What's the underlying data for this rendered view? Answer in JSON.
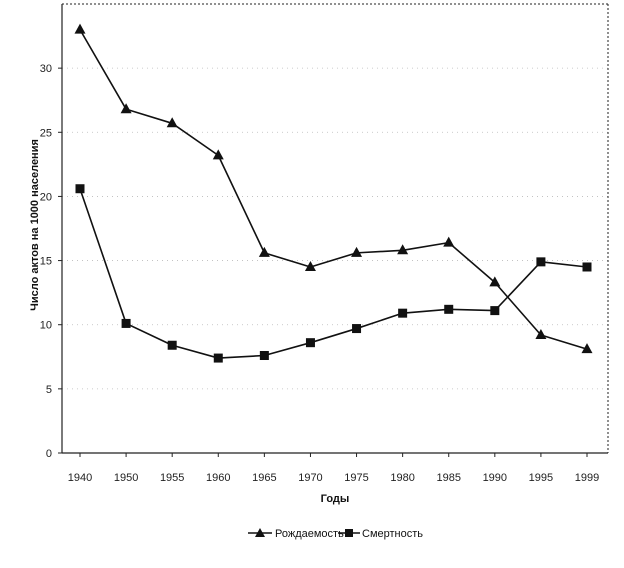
{
  "chart_data": {
    "type": "line",
    "categories": [
      "1940",
      "1950",
      "1955",
      "1960",
      "1965",
      "1970",
      "1975",
      "1980",
      "1985",
      "1990",
      "1995",
      "1999"
    ],
    "series": [
      {
        "name": "Рождаемость",
        "marker": "triangle",
        "values": [
          33.0,
          26.8,
          25.7,
          23.2,
          15.6,
          14.5,
          15.6,
          15.8,
          16.4,
          13.3,
          9.2,
          8.1
        ]
      },
      {
        "name": "Смертность",
        "marker": "square",
        "values": [
          20.6,
          10.1,
          8.4,
          7.4,
          7.6,
          8.6,
          9.7,
          10.9,
          11.2,
          11.1,
          14.9,
          14.5
        ]
      }
    ],
    "yticks": [
      "0",
      "5",
      "10",
      "15",
      "20",
      "25",
      "30"
    ],
    "ylim": [
      0,
      35
    ],
    "xlabel": "Годы",
    "ylabel": "Число актов на 1000 населения",
    "grid": true,
    "legend_position": "bottom",
    "line_color": "#111111"
  }
}
